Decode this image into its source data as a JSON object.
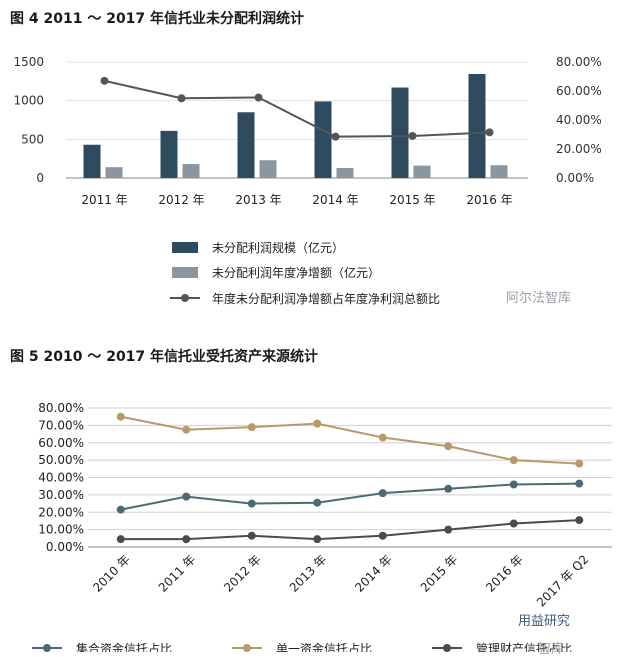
{
  "figure1": {
    "title": "图 4  2011 ～ 2017 年信托业未分配利润统计",
    "watermark": "阿尔法智库",
    "chart_data": {
      "type": "bar",
      "categories": [
        "2011 年",
        "2012 年",
        "2013 年",
        "2014 年",
        "2015 年",
        "2016 年"
      ],
      "series": [
        {
          "name": "未分配利润规模（亿元）",
          "type": "bar",
          "axis": "left",
          "color": "#2e4a5e",
          "values": [
            430,
            610,
            850,
            990,
            1170,
            1345
          ]
        },
        {
          "name": "未分配利润年度净增额（亿元）",
          "type": "bar",
          "axis": "left",
          "color": "#8a97a2",
          "values": [
            140,
            180,
            230,
            130,
            160,
            165
          ]
        },
        {
          "name": "年度未分配利润净增额占年度净利润总额比",
          "type": "line",
          "axis": "right",
          "color": "#555555",
          "values": [
            0.67,
            0.55,
            0.555,
            0.285,
            0.29,
            0.315
          ]
        }
      ],
      "y_left": {
        "ticks": [
          0,
          500,
          1000,
          1500
        ],
        "tick_labels": [
          "0",
          "500",
          "1000",
          "1500"
        ],
        "range": [
          0,
          1500
        ]
      },
      "y_right": {
        "ticks": [
          0,
          0.2,
          0.4,
          0.6,
          0.8
        ],
        "tick_labels": [
          "0.00%",
          "20.00%",
          "40.00%",
          "60.00%",
          "80.00%"
        ],
        "range": [
          0,
          0.8
        ]
      },
      "legend_position": "bottom",
      "grid": true
    }
  },
  "figure2": {
    "title": "图 5  2010 ～ 2017 年信托业受托资产来源统计",
    "watermark": "用益研究",
    "watermark2": "智库",
    "chart_data": {
      "type": "line",
      "categories": [
        "2010 年",
        "2011 年",
        "2012 年",
        "2013 年",
        "2014 年",
        "2015 年",
        "2016 年",
        "2017 年 Q2"
      ],
      "series": [
        {
          "name": "集合资金信托占比",
          "color": "#4a6b73",
          "values": [
            0.215,
            0.29,
            0.25,
            0.255,
            0.31,
            0.335,
            0.36,
            0.365
          ]
        },
        {
          "name": "单一资金信托占比",
          "color": "#b89a6a",
          "values": [
            0.75,
            0.675,
            0.69,
            0.71,
            0.63,
            0.58,
            0.5,
            0.48
          ]
        },
        {
          "name": "管理财产信托占比",
          "color": "#4a4a52",
          "values": [
            0.045,
            0.045,
            0.065,
            0.045,
            0.065,
            0.1,
            0.135,
            0.155
          ]
        }
      ],
      "y": {
        "ticks": [
          0,
          0.1,
          0.2,
          0.3,
          0.4,
          0.5,
          0.6,
          0.7,
          0.8
        ],
        "tick_labels": [
          "0.00%",
          "10.00%",
          "20.00%",
          "30.00%",
          "40.00%",
          "50.00%",
          "60.00%",
          "70.00%",
          "80.00%"
        ],
        "range": [
          0,
          0.8
        ]
      },
      "legend_position": "bottom",
      "grid": true
    }
  }
}
